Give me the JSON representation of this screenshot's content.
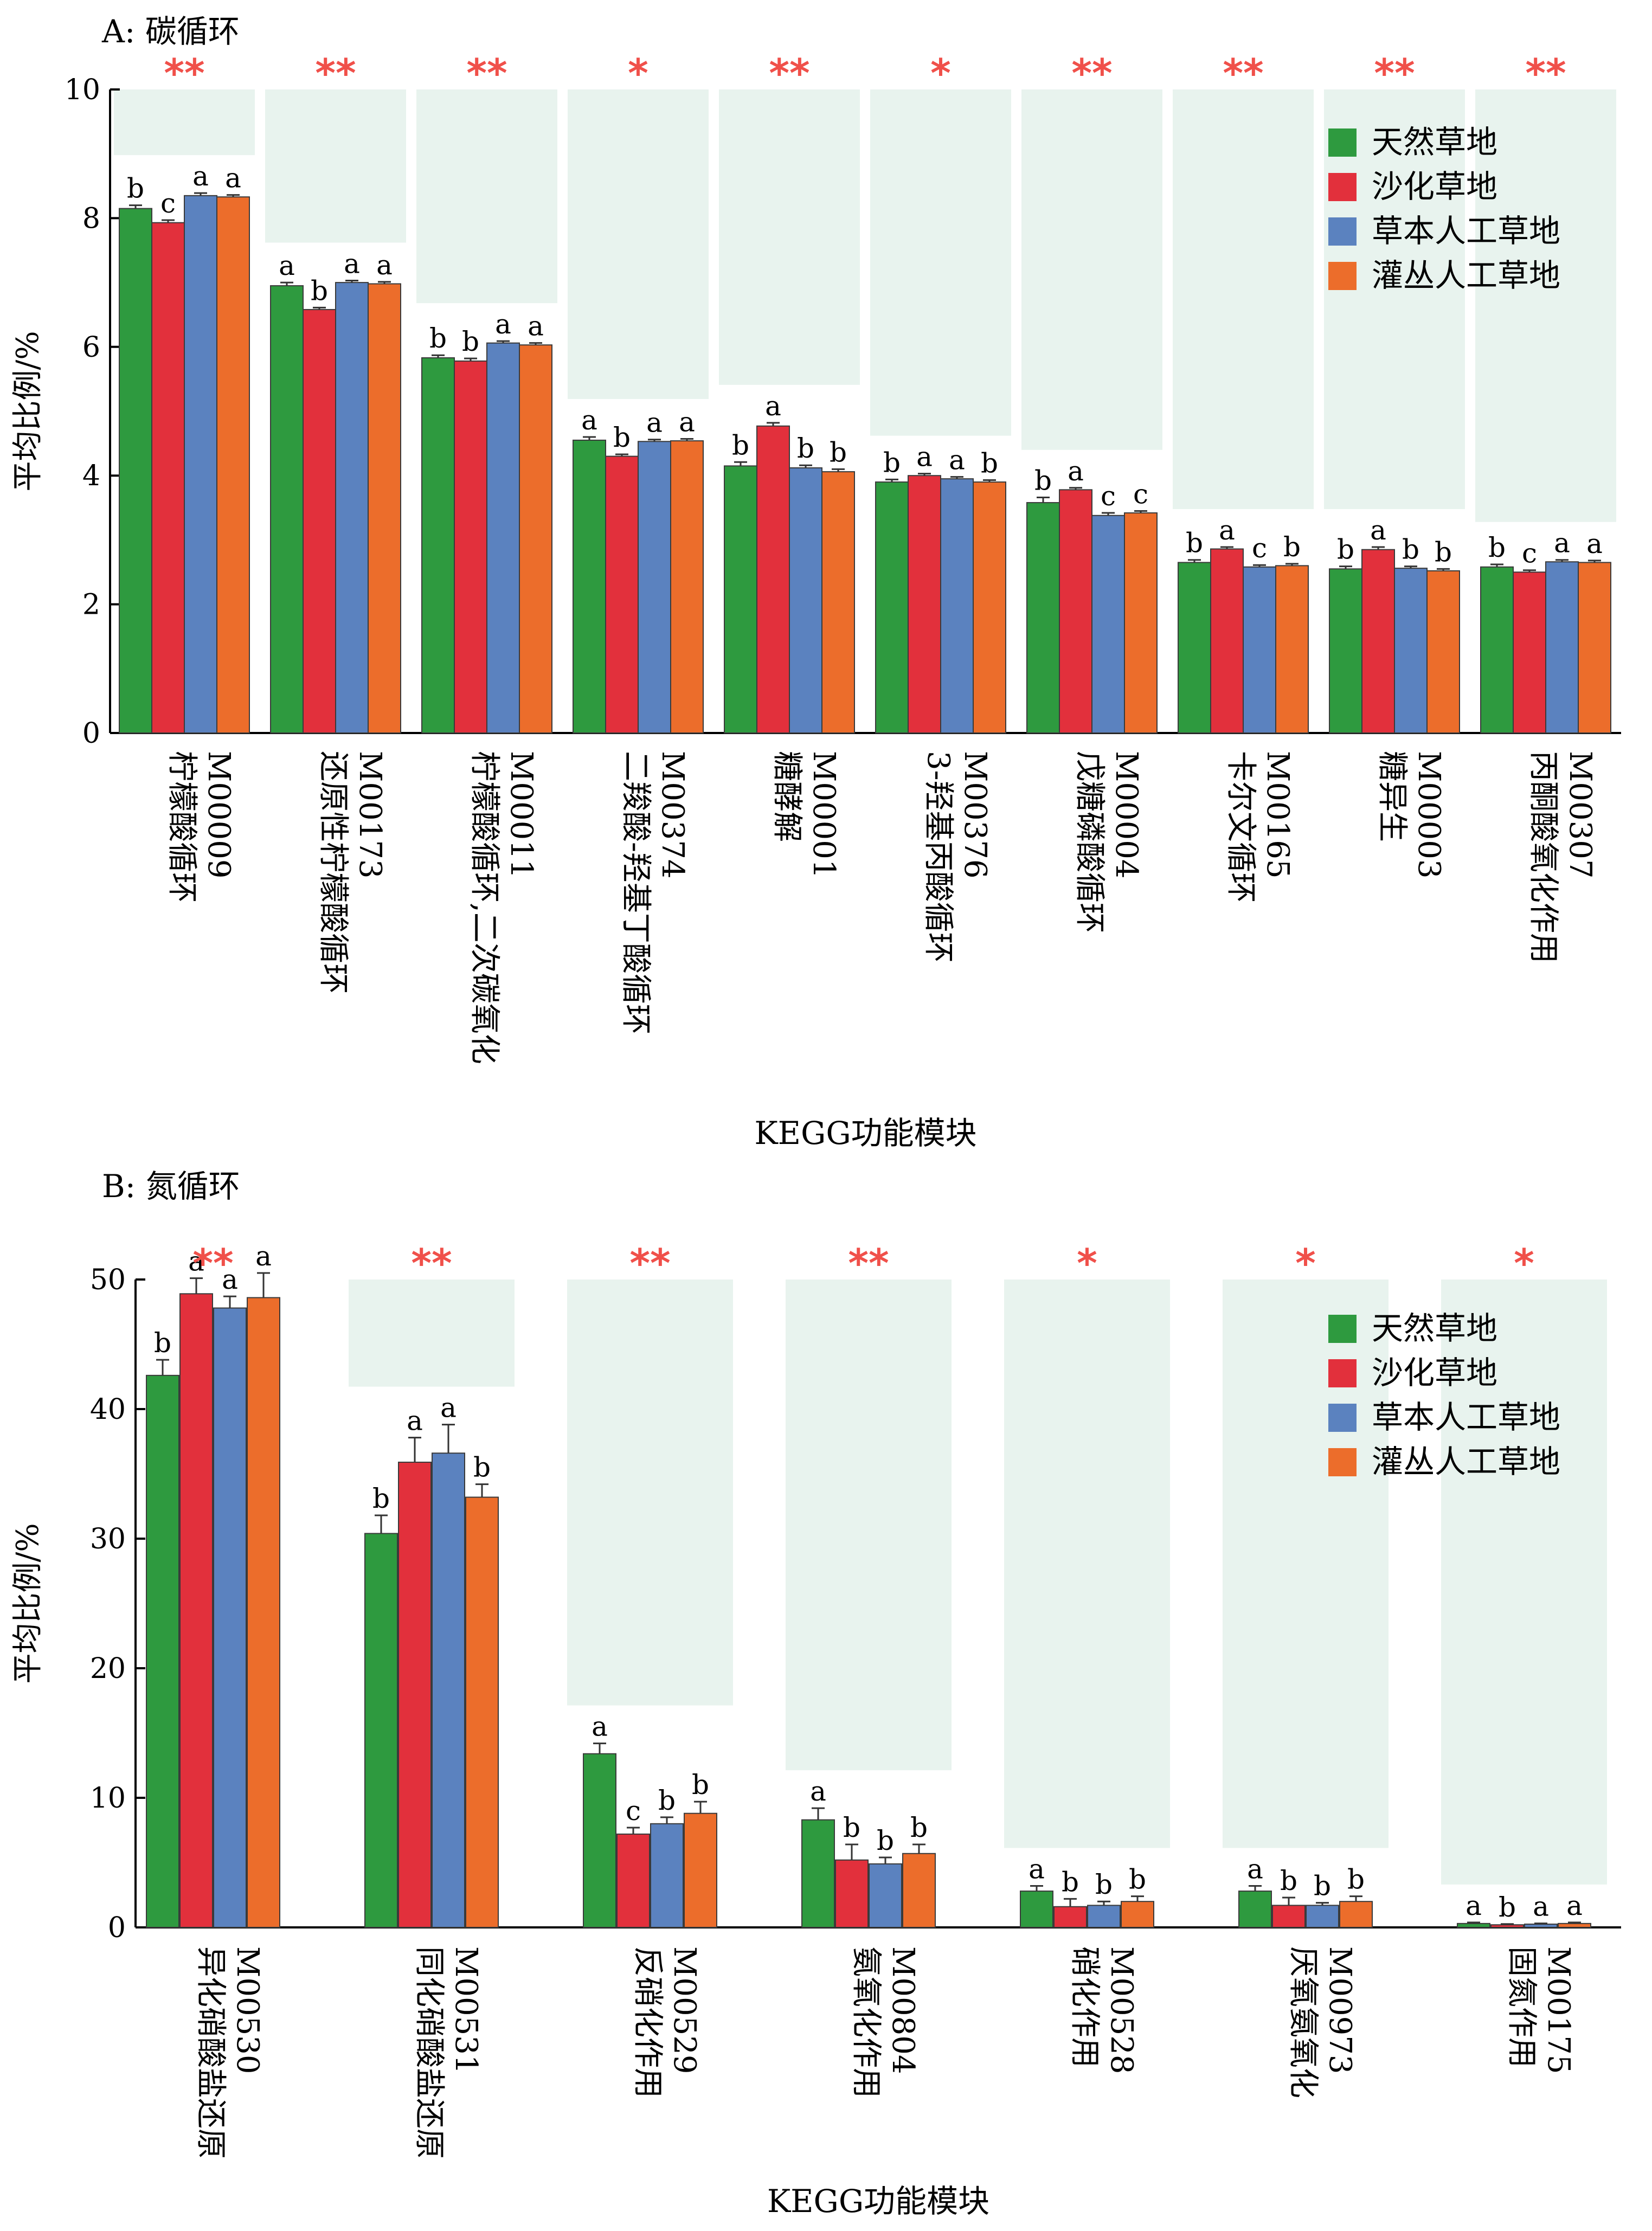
{
  "colors": {
    "series": [
      "#2e9a3f",
      "#e2303c",
      "#5b82bf",
      "#ec6d2b"
    ],
    "significance": "#f0504a",
    "band": "#e8f3ee",
    "axis": "#000000"
  },
  "legend": {
    "entries": [
      "天然草地",
      "沙化草地",
      "草本人工草地",
      "灌丛人工草地"
    ]
  },
  "chart_data": [
    {
      "type": "bar",
      "panel_title": "A: 碳循环",
      "xlabel": "KEGG功能模块",
      "ylabel": "平均比例/%",
      "ylim": [
        0,
        10
      ],
      "yticks": [
        0,
        2,
        4,
        6,
        8,
        10
      ],
      "legend_position": "top-right",
      "categories": [
        {
          "code": "M00009",
          "name": "柠檬酸循环"
        },
        {
          "code": "M00173",
          "name": "还原性柠檬酸循环"
        },
        {
          "code": "M00011",
          "name": "柠檬酸循环,二次碳氧化"
        },
        {
          "code": "M00374",
          "name": "二羧酸-羟基丁酸循环"
        },
        {
          "code": "M00001",
          "name": "糖酵解"
        },
        {
          "code": "M00376",
          "name": "3-羟基丙酸循环"
        },
        {
          "code": "M00004",
          "name": "戊糖磷酸循环"
        },
        {
          "code": "M00165",
          "name": "卡尔文循环"
        },
        {
          "code": "M00003",
          "name": "糖异生"
        },
        {
          "code": "M00307",
          "name": "丙酮酸氧化作用"
        }
      ],
      "significance": [
        "**",
        "**",
        "**",
        "*",
        "**",
        "*",
        "**",
        "**",
        "**",
        "**"
      ],
      "series": [
        {
          "name": "天然草地",
          "values": [
            8.15,
            6.95,
            5.83,
            4.55,
            4.15,
            3.9,
            3.58,
            2.65,
            2.55,
            2.58
          ],
          "errors": [
            0.05,
            0.05,
            0.04,
            0.05,
            0.06,
            0.04,
            0.08,
            0.04,
            0.04,
            0.04
          ],
          "letters": [
            "b",
            "a",
            "b",
            "a",
            "b",
            "b",
            "b",
            "b",
            "b",
            "b"
          ]
        },
        {
          "name": "沙化草地",
          "values": [
            7.93,
            6.58,
            5.78,
            4.3,
            4.77,
            4.0,
            3.78,
            2.86,
            2.85,
            2.5
          ],
          "errors": [
            0.04,
            0.03,
            0.04,
            0.03,
            0.05,
            0.03,
            0.03,
            0.03,
            0.04,
            0.03
          ],
          "letters": [
            "c",
            "b",
            "b",
            "b",
            "a",
            "a",
            "a",
            "a",
            "a",
            "c"
          ]
        },
        {
          "name": "草本人工草地",
          "values": [
            8.35,
            7.0,
            6.06,
            4.53,
            4.12,
            3.95,
            3.38,
            2.58,
            2.56,
            2.66
          ],
          "errors": [
            0.04,
            0.03,
            0.03,
            0.03,
            0.04,
            0.03,
            0.04,
            0.03,
            0.03,
            0.03
          ],
          "letters": [
            "a",
            "a",
            "a",
            "a",
            "b",
            "a",
            "c",
            "c",
            "b",
            "a"
          ]
        },
        {
          "name": "灌丛人工草地",
          "values": [
            8.33,
            6.98,
            6.03,
            4.54,
            4.06,
            3.9,
            3.42,
            2.6,
            2.52,
            2.65
          ],
          "errors": [
            0.03,
            0.03,
            0.03,
            0.03,
            0.04,
            0.03,
            0.03,
            0.03,
            0.03,
            0.03
          ],
          "letters": [
            "a",
            "a",
            "a",
            "a",
            "b",
            "b",
            "c",
            "b",
            "b",
            "a"
          ]
        }
      ]
    },
    {
      "type": "bar",
      "panel_title": "B: 氮循环",
      "xlabel": "KEGG功能模块",
      "ylabel": "平均比例/%",
      "ylim": [
        0,
        50
      ],
      "yticks": [
        0,
        10,
        20,
        30,
        40,
        50
      ],
      "legend_position": "top-right",
      "categories": [
        {
          "code": "M00530",
          "name": "异化硝酸盐还原"
        },
        {
          "code": "M00531",
          "name": "同化硝酸盐还原"
        },
        {
          "code": "M00529",
          "name": "反硝化作用"
        },
        {
          "code": "M00804",
          "name": "氨氧化作用"
        },
        {
          "code": "M00528",
          "name": "硝化作用"
        },
        {
          "code": "M00973",
          "name": "厌氧氨氧化"
        },
        {
          "code": "M00175",
          "name": "固氮作用"
        }
      ],
      "significance": [
        "**",
        "**",
        "**",
        "**",
        "*",
        "*",
        "*"
      ],
      "series": [
        {
          "name": "天然草地",
          "values": [
            42.6,
            30.4,
            13.4,
            8.3,
            2.8,
            2.8,
            0.3
          ],
          "errors": [
            1.2,
            1.4,
            0.8,
            0.9,
            0.4,
            0.4,
            0.08
          ],
          "letters": [
            "b",
            "b",
            "a",
            "a",
            "a",
            "a",
            "a"
          ]
        },
        {
          "name": "沙化草地",
          "values": [
            48.9,
            35.9,
            7.2,
            5.2,
            1.6,
            1.7,
            0.2
          ],
          "errors": [
            1.2,
            1.9,
            0.5,
            1.2,
            0.6,
            0.6,
            0.06
          ],
          "letters": [
            "a",
            "a",
            "c",
            "b",
            "b",
            "b",
            "b"
          ]
        },
        {
          "name": "草本人工草地",
          "values": [
            47.8,
            36.6,
            8.0,
            4.9,
            1.7,
            1.7,
            0.25
          ],
          "errors": [
            0.9,
            2.2,
            0.5,
            0.5,
            0.3,
            0.2,
            0.06
          ],
          "letters": [
            "a",
            "a",
            "b",
            "b",
            "b",
            "b",
            "a"
          ]
        },
        {
          "name": "灌丛人工草地",
          "values": [
            48.6,
            33.2,
            8.8,
            5.7,
            2.0,
            2.0,
            0.3
          ],
          "errors": [
            1.9,
            1.0,
            0.9,
            0.7,
            0.4,
            0.4,
            0.08
          ],
          "letters": [
            "a",
            "b",
            "b",
            "b",
            "b",
            "b",
            "a"
          ]
        }
      ]
    }
  ]
}
